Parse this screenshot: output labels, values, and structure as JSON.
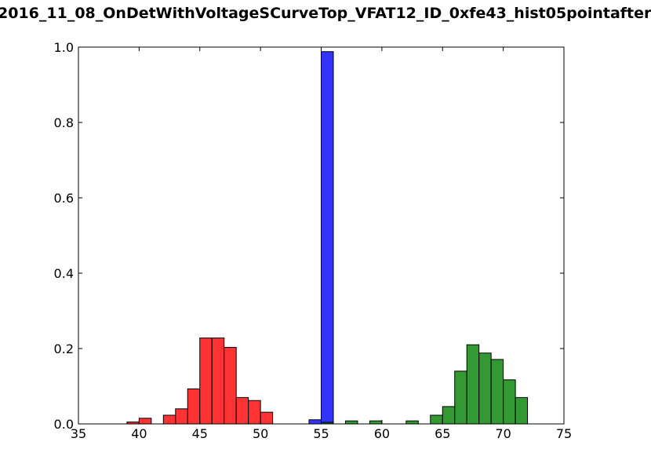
{
  "chart_data": {
    "type": "bar",
    "title": "2016_11_08_OnDetWithVoltageSCurveTop_VFAT12_ID_0xfe43_hist05pointafter",
    "xlabel": "",
    "ylabel": "",
    "xlim": [
      35,
      75
    ],
    "ylim": [
      0,
      1.0
    ],
    "xticks": [
      "35",
      "40",
      "45",
      "50",
      "55",
      "60",
      "65",
      "70",
      "75"
    ],
    "yticks": [
      "0.0",
      "0.2",
      "0.4",
      "0.6",
      "0.8",
      "1.0"
    ],
    "grid": false,
    "bin_width": 1.0,
    "series": [
      {
        "color": "#ff0000",
        "x": [
          39,
          40,
          42,
          43,
          44,
          45,
          46,
          47,
          48,
          49,
          50
        ],
        "values": [
          0.005,
          0.015,
          0.023,
          0.04,
          0.093,
          0.228,
          0.228,
          0.203,
          0.07,
          0.062,
          0.031
        ]
      },
      {
        "color": "#0000ff",
        "x": [
          54,
          55
        ],
        "values": [
          0.011,
          0.988
        ]
      },
      {
        "color": "#008000",
        "x": [
          55,
          57,
          59,
          62,
          64,
          65,
          66,
          67,
          68,
          69,
          70,
          71
        ],
        "values": [
          0.004,
          0.008,
          0.008,
          0.008,
          0.023,
          0.046,
          0.14,
          0.21,
          0.188,
          0.171,
          0.117,
          0.07
        ]
      }
    ]
  }
}
